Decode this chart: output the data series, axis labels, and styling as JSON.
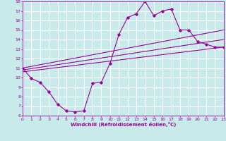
{
  "xlabel": "Windchill (Refroidissement éolien,°C)",
  "bg_color": "#c8eaea",
  "line_color": "#990099",
  "grid_color": "#ffffff",
  "spine_color": "#7b7b7b",
  "xlim": [
    0,
    23
  ],
  "ylim": [
    6,
    18
  ],
  "xticks": [
    0,
    1,
    2,
    3,
    4,
    5,
    6,
    7,
    8,
    9,
    10,
    11,
    12,
    13,
    14,
    15,
    16,
    17,
    18,
    19,
    20,
    21,
    22,
    23
  ],
  "yticks": [
    6,
    7,
    8,
    9,
    10,
    11,
    12,
    13,
    14,
    15,
    16,
    17,
    18
  ],
  "curve1_x": [
    0,
    1,
    2,
    3,
    4,
    5,
    6,
    7,
    8,
    9,
    10,
    11,
    12,
    13,
    14,
    15,
    16,
    17,
    18,
    19,
    20,
    21,
    22,
    23
  ],
  "curve1_y": [
    11.0,
    9.9,
    9.5,
    8.5,
    7.2,
    6.5,
    6.4,
    6.5,
    9.4,
    9.5,
    11.5,
    14.5,
    16.3,
    16.7,
    18.0,
    16.5,
    17.0,
    17.2,
    15.0,
    15.0,
    13.8,
    13.5,
    13.2,
    13.2
  ],
  "line2_x": [
    0,
    23
  ],
  "line2_y": [
    10.6,
    13.2
  ],
  "line3_x": [
    0,
    23
  ],
  "line3_y": [
    10.8,
    14.0
  ],
  "line4_x": [
    0,
    23
  ],
  "line4_y": [
    11.0,
    15.0
  ]
}
